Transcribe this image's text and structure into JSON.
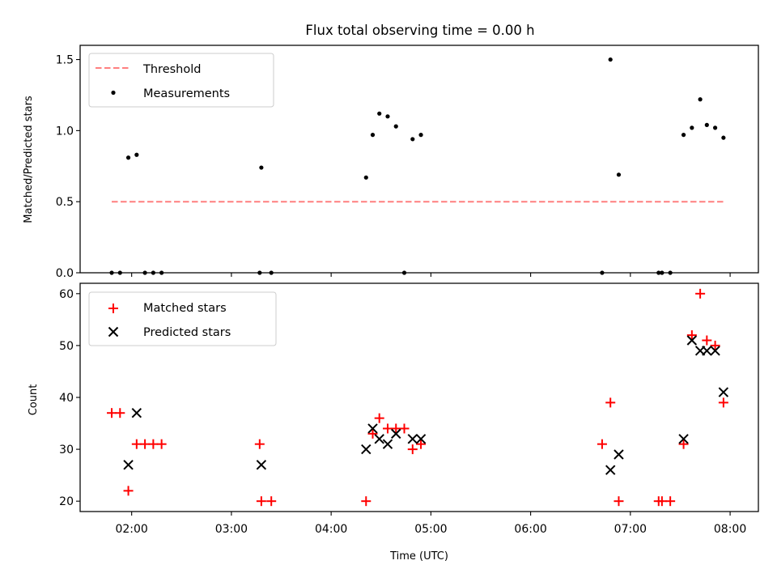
{
  "chart_data": [
    {
      "type": "scatter",
      "title": "Flux total observing time = 0.00 h",
      "xlabel": "",
      "ylabel": "Matched/Predicted stars",
      "xlim": [
        "01:29",
        "08:17"
      ],
      "ylim": [
        0,
        1.6
      ],
      "yticks": [
        0.0,
        0.5,
        1.0,
        1.5
      ],
      "ytick_labels": [
        "0.0",
        "0.5",
        "1.0",
        "1.5"
      ],
      "xticks": [
        "02:00",
        "03:00",
        "04:00",
        "05:00",
        "06:00",
        "07:00",
        "08:00"
      ],
      "xtick_labels_visible": false,
      "legend": "top-left",
      "series": [
        {
          "name": "Threshold",
          "kind": "line",
          "style": "dashed",
          "color": "#ff7f7f",
          "x": [
            "01:48",
            "07:56"
          ],
          "y": [
            0.5,
            0.5
          ]
        },
        {
          "name": "Measurements",
          "kind": "scatter",
          "marker": "dot",
          "color": "#000000",
          "x": [
            "01:48",
            "01:53",
            "01:58",
            "02:03",
            "02:08",
            "02:13",
            "02:18",
            "03:17",
            "03:18",
            "03:24",
            "04:21",
            "04:25",
            "04:29",
            "04:34",
            "04:39",
            "04:44",
            "04:49",
            "04:54",
            "06:43",
            "06:48",
            "06:53",
            "07:17",
            "07:19",
            "07:24",
            "07:32",
            "07:37",
            "07:42",
            "07:46",
            "07:51",
            "07:56"
          ],
          "y": [
            0.0,
            0.0,
            0.81,
            0.83,
            0.0,
            0.0,
            0.0,
            0.0,
            0.74,
            0.0,
            0.67,
            0.97,
            1.12,
            1.1,
            1.03,
            0.0,
            0.94,
            0.97,
            0.0,
            1.5,
            0.69,
            0.0,
            0.0,
            0.0,
            0.97,
            1.02,
            1.22,
            1.04,
            1.02,
            0.95
          ]
        }
      ]
    },
    {
      "type": "scatter",
      "title": "",
      "xlabel": "Time (UTC)",
      "ylabel": "Count",
      "xlim": [
        "01:29",
        "08:17"
      ],
      "ylim": [
        18,
        62
      ],
      "yticks": [
        20,
        30,
        40,
        50,
        60
      ],
      "ytick_labels": [
        "20",
        "30",
        "40",
        "50",
        "60"
      ],
      "xticks": [
        "02:00",
        "03:00",
        "04:00",
        "05:00",
        "06:00",
        "07:00",
        "08:00"
      ],
      "xtick_labels": [
        "02:00",
        "03:00",
        "04:00",
        "05:00",
        "06:00",
        "07:00",
        "08:00"
      ],
      "legend": "top-left",
      "series": [
        {
          "name": "Matched stars",
          "marker": "plus",
          "color": "#ff0000",
          "x": [
            "01:48",
            "01:53",
            "01:58",
            "02:03",
            "02:08",
            "02:13",
            "02:18",
            "03:17",
            "03:18",
            "03:24",
            "04:21",
            "04:25",
            "04:29",
            "04:34",
            "04:39",
            "04:44",
            "04:49",
            "04:54",
            "06:43",
            "06:48",
            "06:53",
            "07:17",
            "07:19",
            "07:24",
            "07:32",
            "07:37",
            "07:42",
            "07:46",
            "07:51",
            "07:56"
          ],
          "y": [
            37,
            37,
            22,
            31,
            31,
            31,
            31,
            31,
            20,
            20,
            20,
            33,
            36,
            34,
            34,
            34,
            30,
            31,
            31,
            39,
            20,
            20,
            20,
            20,
            31,
            52,
            60,
            51,
            50,
            39
          ]
        },
        {
          "name": "Predicted stars",
          "marker": "x",
          "color": "#000000",
          "x": [
            "01:58",
            "02:03",
            "03:18",
            "04:21",
            "04:25",
            "04:29",
            "04:34",
            "04:39",
            "04:49",
            "04:54",
            "06:48",
            "06:53",
            "07:32",
            "07:37",
            "07:42",
            "07:46",
            "07:51",
            "07:56"
          ],
          "y": [
            27,
            37,
            27,
            30,
            34,
            32,
            31,
            33,
            32,
            32,
            26,
            29,
            32,
            51,
            49,
            49,
            49,
            41
          ]
        }
      ]
    }
  ]
}
